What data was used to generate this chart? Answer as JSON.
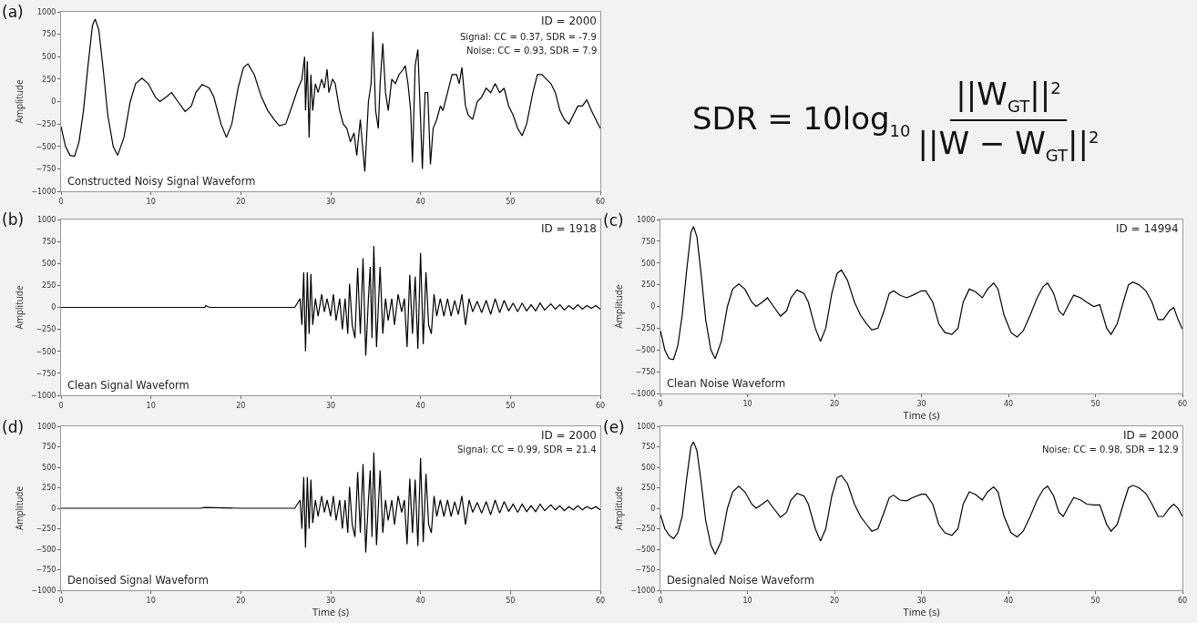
{
  "chart_data": [
    {
      "type": "line",
      "title": "Constructed Noisy Signal Waveform",
      "ylabel": "Amplitude",
      "color": "#000000",
      "annotations": [
        "(a)",
        "ID = 2000",
        "Signal: CC = 0.37, SDR = -7.9",
        "Noise: CC = 0.93, SDR = 7.9"
      ],
      "xlim": [
        0,
        60
      ],
      "xticks": [
        0,
        10,
        20,
        30,
        40,
        50,
        60
      ],
      "ylim": [
        -1000,
        1000
      ],
      "yticks": [
        {
          "value": -1000,
          "label": "−1000"
        },
        {
          "value": -750,
          "label": "−750"
        },
        {
          "value": -500,
          "label": "−500"
        },
        {
          "value": -250,
          "label": "−250"
        },
        0,
        250,
        500,
        750,
        1000
      ],
      "x": [
        0,
        0.5,
        1,
        1.5,
        2,
        2.5,
        3,
        3.5,
        3.8,
        4.2,
        4.7,
        5.2,
        5.8,
        6.3,
        7,
        7.7,
        8.3,
        9,
        9.7,
        10.5,
        11,
        11.7,
        12.3,
        13,
        13.8,
        14.5,
        15,
        15.7,
        16.5,
        17,
        17.8,
        18.4,
        19,
        19.7,
        20.3,
        20.8,
        21.5,
        22.3,
        23,
        23.7,
        24.3,
        25,
        25.7,
        26.3,
        26.8,
        27.1,
        27.2,
        27.4,
        27.6,
        27.8,
        28,
        28.3,
        28.6,
        29,
        29.3,
        29.6,
        29.8,
        30.2,
        30.5,
        31,
        31.4,
        31.8,
        32.2,
        32.6,
        32.9,
        33.3,
        33.5,
        33.8,
        34.2,
        34.5,
        34.7,
        35,
        35.3,
        35.5,
        35.8,
        36.1,
        36.4,
        36.8,
        37.2,
        37.6,
        38,
        38.3,
        38.6,
        38.9,
        39.1,
        39.4,
        39.7,
        40,
        40.2,
        40.5,
        40.8,
        41.1,
        41.4,
        41.8,
        42.2,
        42.5,
        43,
        43.5,
        44,
        44.3,
        44.6,
        45,
        45.3,
        45.8,
        46.3,
        46.8,
        47.3,
        47.8,
        48.3,
        48.8,
        49.3,
        49.8,
        50.3,
        50.8,
        51.3,
        51.8,
        52.5,
        53,
        53.5,
        54,
        54.5,
        55,
        55.5,
        56,
        56.5,
        57,
        57.5,
        58,
        58.5,
        59,
        59.5,
        60
      ],
      "values": [
        -280,
        -500,
        -600,
        -610,
        -450,
        -100,
        400,
        850,
        920,
        800,
        350,
        -150,
        -500,
        -600,
        -400,
        0,
        200,
        260,
        200,
        50,
        0,
        50,
        100,
        0,
        -110,
        -50,
        100,
        190,
        150,
        50,
        -250,
        -400,
        -250,
        150,
        380,
        420,
        300,
        50,
        -100,
        -200,
        -270,
        -250,
        -50,
        130,
        250,
        500,
        -100,
        450,
        -400,
        300,
        -100,
        200,
        100,
        250,
        150,
        360,
        100,
        250,
        200,
        -100,
        -250,
        -300,
        -450,
        -350,
        -600,
        -200,
        -450,
        -780,
        0,
        200,
        780,
        -100,
        -300,
        200,
        650,
        100,
        -100,
        250,
        200,
        300,
        350,
        400,
        200,
        -100,
        -680,
        400,
        580,
        -200,
        -750,
        100,
        100,
        -700,
        -300,
        -200,
        -50,
        -100,
        100,
        300,
        300,
        200,
        380,
        -50,
        -150,
        -200,
        0,
        50,
        150,
        100,
        200,
        100,
        150,
        -50,
        -150,
        -300,
        -380,
        -250,
        100,
        300,
        300,
        250,
        200,
        100,
        -100,
        -200,
        -250,
        -150,
        -50,
        -50,
        20,
        -100,
        -200,
        -300
      ]
    },
    {
      "type": "line",
      "title": "Clean Signal Waveform",
      "ylabel": "Amplitude",
      "color": "#000000",
      "annotations": [
        "(b)",
        "ID = 1918"
      ],
      "xlim": [
        0,
        60
      ],
      "xticks": [
        0,
        10,
        20,
        30,
        40,
        50,
        60
      ],
      "ylim": [
        -1000,
        1000
      ],
      "yticks": [
        {
          "value": -1000,
          "label": "−1000"
        },
        {
          "value": -750,
          "label": "−750"
        },
        {
          "value": -500,
          "label": "−500"
        },
        {
          "value": -250,
          "label": "−250"
        },
        0,
        250,
        500,
        750,
        1000
      ],
      "x": [
        0,
        16,
        16.1,
        16.5,
        20,
        26,
        26.6,
        26.8,
        27,
        27.2,
        27.4,
        27.6,
        27.8,
        28,
        28.3,
        28.6,
        29,
        29.3,
        29.6,
        30,
        30.3,
        30.6,
        31,
        31.3,
        31.6,
        31.9,
        32.1,
        32.4,
        32.7,
        33,
        33.3,
        33.6,
        33.9,
        34.2,
        34.4,
        34.6,
        34.8,
        35.1,
        35.5,
        35.8,
        36.1,
        36.4,
        36.8,
        37.1,
        37.5,
        37.9,
        38.2,
        38.5,
        38.8,
        39.1,
        39.4,
        39.7,
        40,
        40.3,
        40.6,
        40.9,
        41.2,
        41.5,
        41.8,
        42.2,
        42.6,
        43,
        43.4,
        43.8,
        44.2,
        44.6,
        45,
        45.4,
        45.8,
        46.3,
        46.8,
        47.3,
        47.8,
        48.3,
        48.8,
        49.3,
        49.8,
        50.3,
        50.8,
        51.3,
        51.8,
        52.3,
        52.8,
        53.3,
        53.8,
        54.5,
        55,
        55.5,
        56,
        56.5,
        57,
        57.5,
        58,
        58.5,
        59,
        59.5,
        60
      ],
      "values": [
        0,
        0,
        20,
        0,
        0,
        0,
        100,
        -200,
        400,
        -500,
        400,
        -300,
        380,
        -200,
        100,
        -100,
        150,
        -50,
        100,
        -100,
        150,
        -150,
        100,
        -250,
        100,
        -300,
        270,
        -200,
        -350,
        450,
        -300,
        560,
        -550,
        100,
        460,
        -350,
        700,
        -450,
        460,
        -300,
        100,
        -150,
        100,
        -200,
        150,
        -50,
        100,
        -450,
        370,
        -300,
        350,
        -470,
        620,
        -420,
        400,
        -200,
        -300,
        150,
        -100,
        100,
        -100,
        100,
        -100,
        80,
        -80,
        150,
        -200,
        100,
        -50,
        70,
        -60,
        80,
        -80,
        100,
        -60,
        80,
        -40,
        50,
        -50,
        50,
        -40,
        30,
        -40,
        50,
        -30,
        40,
        -20,
        30,
        -30,
        20,
        -20,
        30,
        -20,
        20,
        -10,
        20,
        -20
      ]
    },
    {
      "type": "line",
      "title": "Clean Noise Waveform",
      "xlabel": "Time (s)",
      "ylabel": "Amplitude",
      "color": "#000000",
      "annotations": [
        "(c)",
        "ID = 14994"
      ],
      "xlim": [
        0,
        60
      ],
      "xticks": [
        0,
        10,
        20,
        30,
        40,
        50,
        60
      ],
      "ylim": [
        -1000,
        1000
      ],
      "yticks": [
        {
          "value": -1000,
          "label": "−1000"
        },
        {
          "value": -750,
          "label": "−750"
        },
        {
          "value": -500,
          "label": "−500"
        },
        {
          "value": -250,
          "label": "−250"
        },
        0,
        250,
        500,
        750,
        1000
      ],
      "x": [
        0,
        0.5,
        1,
        1.5,
        2,
        2.5,
        3,
        3.5,
        3.8,
        4.2,
        4.7,
        5.2,
        5.8,
        6.3,
        7,
        7.7,
        8.3,
        9,
        9.7,
        10.5,
        11,
        11.7,
        12.3,
        13,
        13.8,
        14.5,
        15,
        15.7,
        16.5,
        17,
        17.8,
        18.4,
        19,
        19.7,
        20.3,
        20.8,
        21.5,
        22.3,
        23,
        23.7,
        24.3,
        25,
        25.7,
        26.3,
        26.8,
        27.5,
        28.3,
        29,
        30,
        30.5,
        31.3,
        32,
        32.7,
        33.5,
        34.2,
        34.8,
        35.5,
        36.2,
        37,
        37.6,
        38.3,
        38.8,
        39.5,
        40.3,
        41,
        41.7,
        42.5,
        43.3,
        44,
        44.5,
        45.2,
        45.8,
        46.3,
        46.8,
        47.5,
        48.3,
        49,
        49.8,
        50.5,
        51.3,
        51.8,
        52.5,
        53.2,
        53.8,
        54.3,
        55,
        55.8,
        56.5,
        57.2,
        57.8,
        58.5,
        59,
        59.5,
        60
      ],
      "values": [
        -280,
        -500,
        -600,
        -610,
        -450,
        -100,
        400,
        850,
        920,
        800,
        350,
        -150,
        -500,
        -600,
        -400,
        0,
        200,
        260,
        200,
        50,
        0,
        50,
        100,
        0,
        -110,
        -50,
        100,
        190,
        150,
        50,
        -250,
        -400,
        -250,
        150,
        380,
        420,
        300,
        50,
        -100,
        -200,
        -270,
        -250,
        -50,
        150,
        180,
        130,
        100,
        130,
        180,
        180,
        50,
        -200,
        -300,
        -320,
        -250,
        50,
        200,
        170,
        100,
        200,
        270,
        200,
        -100,
        -300,
        -350,
        -280,
        -100,
        100,
        230,
        270,
        150,
        -50,
        -100,
        0,
        130,
        100,
        50,
        0,
        20,
        -250,
        -320,
        -200,
        50,
        250,
        280,
        250,
        180,
        50,
        -150,
        -150,
        -50,
        -10,
        -150,
        -260
      ]
    },
    {
      "type": "line",
      "title": "Denoised Signal Waveform",
      "xlabel": "Time (s)",
      "ylabel": "Amplitude",
      "color": "#000000",
      "annotations": [
        "(d)",
        "ID = 2000",
        "Signal: CC = 0.99, SDR = 21.4"
      ],
      "xlim": [
        0,
        60
      ],
      "xticks": [
        0,
        10,
        20,
        30,
        40,
        50,
        60
      ],
      "ylim": [
        -1000,
        1000
      ],
      "yticks": [
        {
          "value": -1000,
          "label": "−1000"
        },
        {
          "value": -750,
          "label": "−750"
        },
        {
          "value": -500,
          "label": "−500"
        },
        {
          "value": -250,
          "label": "−250"
        },
        0,
        250,
        500,
        750,
        1000
      ],
      "x": [
        0,
        5,
        10,
        15.5,
        16,
        20,
        26,
        26.6,
        26.8,
        27,
        27.2,
        27.4,
        27.6,
        27.8,
        28,
        28.3,
        28.6,
        29,
        29.3,
        29.6,
        30,
        30.3,
        30.6,
        31,
        31.3,
        31.6,
        31.9,
        32.1,
        32.4,
        32.7,
        33,
        33.3,
        33.6,
        33.9,
        34.2,
        34.4,
        34.6,
        34.8,
        35.1,
        35.5,
        35.8,
        36.1,
        36.4,
        36.8,
        37.1,
        37.5,
        37.9,
        38.2,
        38.5,
        38.8,
        39.1,
        39.4,
        39.7,
        40,
        40.3,
        40.6,
        40.9,
        41.2,
        41.5,
        41.8,
        42.2,
        42.6,
        43,
        43.4,
        43.8,
        44.2,
        44.6,
        45,
        45.4,
        45.8,
        46.3,
        46.8,
        47.3,
        47.8,
        48.3,
        48.8,
        49.3,
        49.8,
        50.3,
        50.8,
        51.3,
        51.8,
        52.3,
        52.8,
        53.3,
        53.8,
        54.5,
        55,
        55.5,
        56,
        56.5,
        57,
        57.5,
        58,
        58.5,
        59,
        59.5,
        60
      ],
      "values": [
        0,
        0,
        0,
        0,
        10,
        0,
        0,
        100,
        -250,
        380,
        -480,
        380,
        -250,
        350,
        -180,
        100,
        -100,
        150,
        -50,
        100,
        -100,
        150,
        -150,
        100,
        -250,
        100,
        -300,
        260,
        -200,
        -350,
        440,
        -300,
        540,
        -540,
        100,
        460,
        -350,
        680,
        -450,
        460,
        -300,
        100,
        -150,
        100,
        -200,
        150,
        -50,
        100,
        -440,
        360,
        -300,
        350,
        -460,
        610,
        -410,
        420,
        -200,
        -300,
        150,
        -100,
        100,
        -100,
        100,
        -100,
        80,
        -80,
        150,
        -200,
        100,
        -50,
        70,
        -60,
        80,
        -80,
        100,
        -60,
        80,
        -40,
        50,
        -50,
        50,
        -40,
        30,
        -40,
        50,
        -30,
        40,
        -20,
        30,
        -30,
        20,
        -20,
        30,
        -20,
        20,
        -10,
        20,
        -20
      ]
    },
    {
      "type": "line",
      "title": "Designaled Noise Waveform",
      "xlabel": "Time (s)",
      "ylabel": "Amplitude",
      "color": "#000000",
      "annotations": [
        "(e)",
        "ID = 2000",
        "Noise: CC = 0.98, SDR = 12.9"
      ],
      "xlim": [
        0,
        60
      ],
      "xticks": [
        0,
        10,
        20,
        30,
        40,
        50,
        60
      ],
      "ylim": [
        -1000,
        1000
      ],
      "yticks": [
        {
          "value": -1000,
          "label": "−1000"
        },
        {
          "value": -750,
          "label": "−750"
        },
        {
          "value": -500,
          "label": "−500"
        },
        {
          "value": -250,
          "label": "−250"
        },
        0,
        250,
        500,
        750,
        1000
      ],
      "x": [
        0,
        0.5,
        1,
        1.5,
        2,
        2.5,
        3,
        3.5,
        3.8,
        4.2,
        4.7,
        5.2,
        5.8,
        6.3,
        7,
        7.7,
        8.3,
        9,
        9.7,
        10.5,
        11,
        11.7,
        12.3,
        13,
        13.8,
        14.5,
        15,
        15.7,
        16.5,
        17,
        17.8,
        18.4,
        19,
        19.7,
        20.3,
        20.8,
        21.5,
        22.3,
        23,
        23.7,
        24.3,
        25,
        25.7,
        26.3,
        26.8,
        27.5,
        28.3,
        29,
        30,
        30.5,
        31.3,
        32,
        32.7,
        33.5,
        34.2,
        34.8,
        35.5,
        36.2,
        37,
        37.6,
        38.3,
        38.8,
        39.5,
        40.3,
        41,
        41.7,
        42.5,
        43.3,
        44,
        44.5,
        45.2,
        45.8,
        46.3,
        46.8,
        47.5,
        48.3,
        49,
        49.8,
        50.5,
        51.3,
        51.8,
        52.5,
        53.2,
        53.8,
        54.3,
        55,
        55.8,
        56.5,
        57.2,
        57.8,
        58.5,
        59,
        59.5,
        60
      ],
      "values": [
        -80,
        -250,
        -330,
        -370,
        -300,
        -100,
        350,
        750,
        810,
        700,
        300,
        -150,
        -450,
        -560,
        -400,
        0,
        200,
        270,
        200,
        50,
        0,
        50,
        100,
        0,
        -110,
        -50,
        100,
        180,
        150,
        50,
        -250,
        -400,
        -250,
        150,
        370,
        400,
        300,
        50,
        -100,
        -200,
        -280,
        -250,
        -50,
        130,
        160,
        100,
        90,
        130,
        170,
        170,
        50,
        -200,
        -300,
        -330,
        -250,
        50,
        200,
        170,
        100,
        200,
        260,
        200,
        -100,
        -300,
        -350,
        -280,
        -100,
        100,
        230,
        270,
        150,
        -50,
        -100,
        0,
        130,
        100,
        50,
        40,
        40,
        -200,
        -280,
        -200,
        50,
        250,
        280,
        250,
        180,
        50,
        -100,
        -100,
        0,
        50,
        0,
        -100
      ]
    },
    {
      "type": "other",
      "annotations": [
        "SDR = 10log$_{10}$",
        "||W$_{GT}$||$^{2}$",
        "||W − W$_{GT}$||$^{2}$"
      ]
    }
  ]
}
